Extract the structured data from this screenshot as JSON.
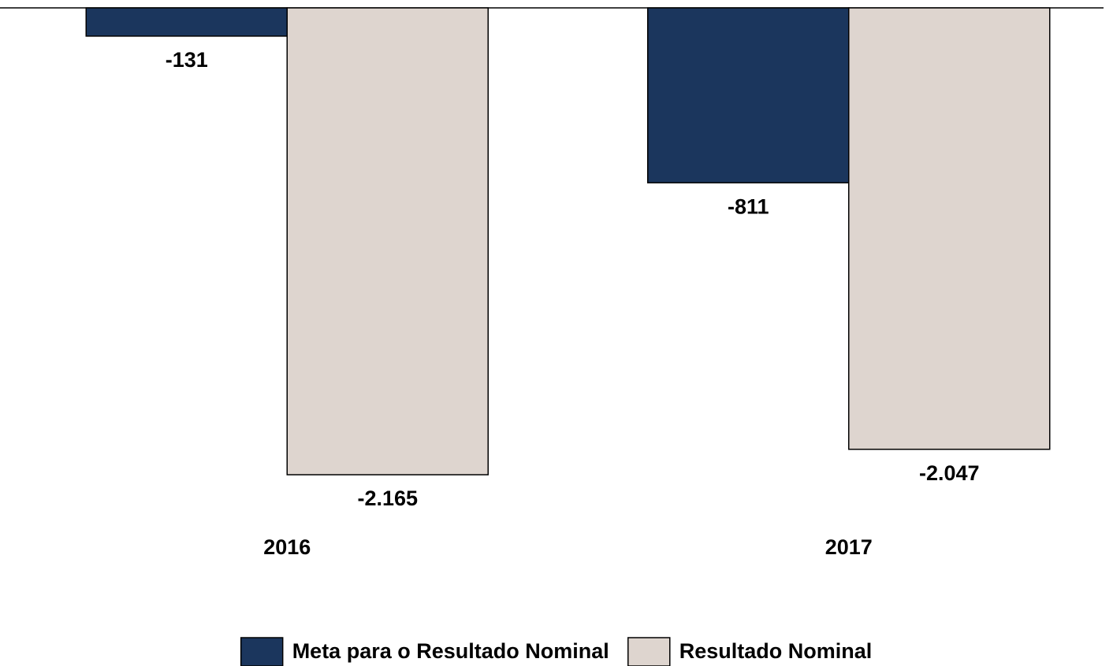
{
  "chart_data": {
    "type": "bar",
    "categories": [
      "2016",
      "2017"
    ],
    "series": [
      {
        "name": "Meta para o Resultado Nominal",
        "color": "#1b365d",
        "values": [
          -131,
          -811
        ],
        "value_labels": [
          "-131",
          "-811"
        ]
      },
      {
        "name": "Resultado Nominal",
        "color": "#ded5cf",
        "values": [
          -2165,
          -2047
        ],
        "value_labels": [
          "-2.165",
          "-2.047"
        ]
      }
    ],
    "ylim": [
      -2500,
      0
    ]
  }
}
